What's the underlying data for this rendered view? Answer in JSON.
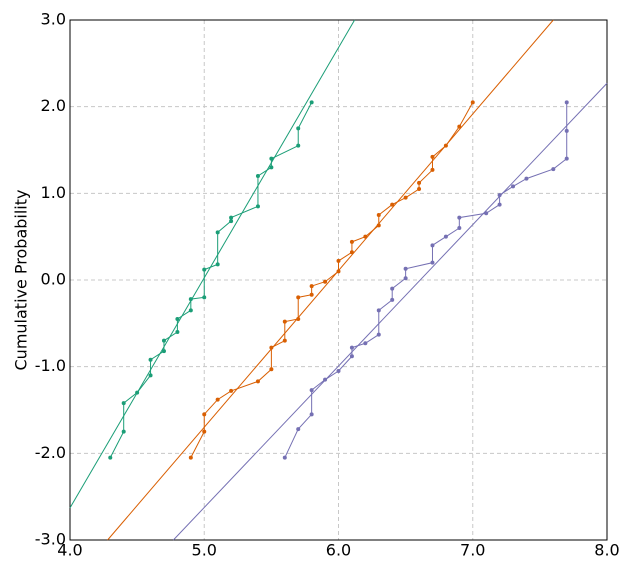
{
  "chart_data": {
    "type": "probability",
    "ylabel": "Cumulative Probability",
    "xlim": [
      4.0,
      8.0
    ],
    "ylim": [
      -3.0,
      3.0
    ],
    "xticks": [
      {
        "value": 4.0,
        "label": "4.0"
      },
      {
        "value": 5.0,
        "label": "5.0"
      },
      {
        "value": 6.0,
        "label": "6.0"
      },
      {
        "value": 7.0,
        "label": "7.0"
      },
      {
        "value": 8.0,
        "label": "8.0"
      }
    ],
    "yticks": [
      {
        "value": 3.0,
        "label": "3.0"
      },
      {
        "value": 2.0,
        "label": "2.0"
      },
      {
        "value": 1.0,
        "label": "1.0"
      },
      {
        "value": 0.0,
        "label": "0.0"
      },
      {
        "value": -1.0,
        "label": "-1.0"
      },
      {
        "value": -2.0,
        "label": "-2.0"
      },
      {
        "value": -3.0,
        "label": "-3.0"
      }
    ],
    "grid": true,
    "series": [
      {
        "color": "#1b9e77",
        "x": [
          4.3,
          4.4,
          4.4,
          4.5,
          4.6,
          4.6,
          4.7,
          4.7,
          4.8,
          4.8,
          4.9,
          4.9,
          5.0,
          5.0,
          5.1,
          5.1,
          5.2,
          5.2,
          5.4,
          5.4,
          5.5,
          5.5,
          5.7,
          5.7,
          5.8
        ],
        "values": [
          -2.05,
          -1.75,
          -1.42,
          -1.3,
          -1.1,
          -0.92,
          -0.82,
          -0.7,
          -0.6,
          -0.45,
          -0.35,
          -0.22,
          -0.2,
          0.12,
          0.18,
          0.55,
          0.68,
          0.72,
          0.85,
          1.2,
          1.3,
          1.4,
          1.55,
          1.75,
          2.05
        ],
        "fit_x": [
          4.0,
          6.12
        ],
        "fit_y": [
          -2.63,
          3.0
        ]
      },
      {
        "color": "#d95f02",
        "x": [
          4.9,
          5.0,
          5.0,
          5.1,
          5.2,
          5.4,
          5.5,
          5.5,
          5.6,
          5.6,
          5.7,
          5.7,
          5.8,
          5.8,
          5.9,
          6.0,
          6.0,
          6.1,
          6.1,
          6.2,
          6.3,
          6.3,
          6.4,
          6.5,
          6.6,
          6.6,
          6.7,
          6.7,
          6.8,
          6.9,
          7.0
        ],
        "values": [
          -2.05,
          -1.75,
          -1.55,
          -1.38,
          -1.28,
          -1.17,
          -1.03,
          -0.78,
          -0.7,
          -0.48,
          -0.45,
          -0.2,
          -0.17,
          -0.07,
          -0.02,
          0.1,
          0.22,
          0.32,
          0.44,
          0.5,
          0.63,
          0.75,
          0.87,
          0.95,
          1.05,
          1.12,
          1.27,
          1.42,
          1.55,
          1.77,
          2.05
        ],
        "fit_x": [
          4.28,
          7.6
        ],
        "fit_y": [
          -3.0,
          3.0
        ]
      },
      {
        "color": "#7570b3",
        "x": [
          5.6,
          5.7,
          5.8,
          5.8,
          5.9,
          6.0,
          6.1,
          6.1,
          6.2,
          6.3,
          6.3,
          6.4,
          6.4,
          6.5,
          6.5,
          6.7,
          6.7,
          6.8,
          6.9,
          6.9,
          7.1,
          7.2,
          7.2,
          7.3,
          7.4,
          7.6,
          7.7,
          7.7,
          7.7
        ],
        "values": [
          -2.05,
          -1.72,
          -1.55,
          -1.27,
          -1.15,
          -1.05,
          -0.88,
          -0.78,
          -0.73,
          -0.63,
          -0.35,
          -0.23,
          -0.1,
          0.02,
          0.13,
          0.2,
          0.4,
          0.5,
          0.6,
          0.72,
          0.77,
          0.87,
          0.98,
          1.08,
          1.17,
          1.28,
          1.4,
          1.72,
          2.05
        ],
        "fit_x": [
          4.77,
          8.0
        ],
        "fit_y": [
          -3.0,
          2.27
        ]
      }
    ]
  }
}
